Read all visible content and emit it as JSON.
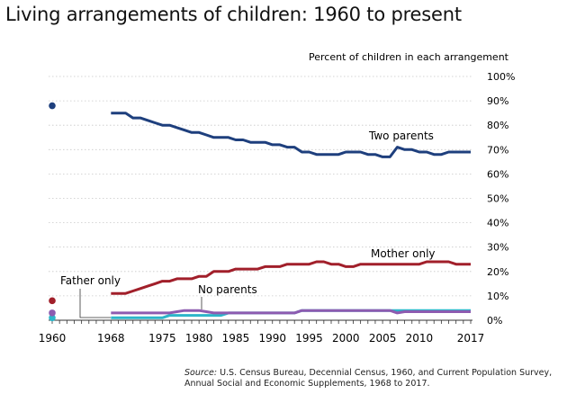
{
  "chart_data": {
    "type": "line",
    "title": "Living arrangements of children: 1960 to present",
    "ylabel": "Percent of children in each arrangement",
    "xlabel": "",
    "xlim": [
      1960,
      2017
    ],
    "ylim": [
      0,
      100
    ],
    "grid": true,
    "x_tick_labels": [
      "1960",
      "1968",
      "1975",
      "1980",
      "1985",
      "1990",
      "1995",
      "2000",
      "2005",
      "2010",
      "2017"
    ],
    "y_tick_labels": [
      "0%",
      "10%",
      "20%",
      "30%",
      "40%",
      "50%",
      "60%",
      "70%",
      "80%",
      "90%",
      "100%"
    ],
    "point_1960_year": 1960,
    "years_start": 1968,
    "years_end": 2017,
    "series": [
      {
        "name": "Two parents",
        "color": "#1e3f7d",
        "value_1960": 88,
        "values": [
          85,
          85,
          85,
          83,
          83,
          82,
          81,
          80,
          80,
          79,
          78,
          77,
          77,
          76,
          75,
          75,
          75,
          74,
          74,
          73,
          73,
          73,
          72,
          72,
          71,
          71,
          69,
          69,
          68,
          68,
          68,
          68,
          69,
          69,
          69,
          68,
          68,
          67,
          67,
          71,
          70,
          70,
          69,
          69,
          68,
          68,
          69,
          69,
          69,
          69
        ]
      },
      {
        "name": "Mother only",
        "color": "#a11f2a",
        "value_1960": 8,
        "values": [
          11,
          11,
          11,
          12,
          13,
          14,
          15,
          16,
          16,
          17,
          17,
          17,
          18,
          18,
          20,
          20,
          20,
          21,
          21,
          21,
          21,
          22,
          22,
          22,
          23,
          23,
          23,
          23,
          24,
          24,
          23,
          23,
          22,
          22,
          23,
          23,
          23,
          23,
          23,
          23,
          23,
          23,
          23,
          24,
          24,
          24,
          24,
          23,
          23,
          23
        ]
      },
      {
        "name": "Father only",
        "color": "#2db6c9",
        "value_1960": 1,
        "values": [
          1,
          1,
          1,
          1,
          1,
          1,
          1,
          1,
          2,
          2,
          2,
          2,
          2,
          2,
          2,
          2,
          3,
          3,
          3,
          3,
          3,
          3,
          3,
          3,
          3,
          3,
          4,
          4,
          4,
          4,
          4,
          4,
          4,
          4,
          4,
          4,
          4,
          4,
          4,
          4,
          4,
          4,
          4,
          4,
          4,
          4,
          4,
          4,
          4,
          4
        ]
      },
      {
        "name": "No parents",
        "color": "#8d5bb0",
        "value_1960": 3,
        "values": [
          3,
          3,
          3,
          3,
          3,
          3,
          3,
          3,
          3,
          3.5,
          4,
          4,
          4,
          3.5,
          3,
          3,
          3,
          3,
          3,
          3,
          3,
          3,
          3,
          3,
          3,
          3,
          4,
          4,
          4,
          4,
          4,
          4,
          4,
          4,
          4,
          4,
          4,
          4,
          4,
          3,
          3.5,
          3.5,
          3.5,
          3.5,
          3.5,
          3.5,
          3.5,
          3.5,
          3.5,
          3.5
        ]
      }
    ]
  },
  "source": {
    "label": "Source:",
    "text": " U.S. Census Bureau, Decennial Census, 1960, and Current Population Survey,",
    "text2": "Annual Social and Economic Supplements, 1968 to 2017."
  }
}
